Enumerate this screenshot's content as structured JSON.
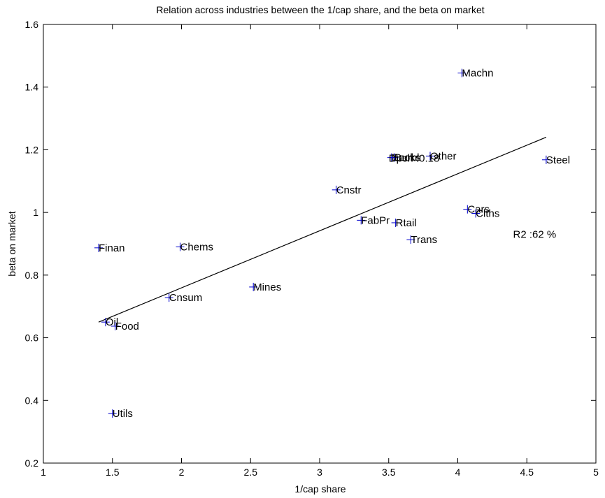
{
  "chart_data": {
    "type": "scatter",
    "title": "Relation across industries between the  1/cap share, and the beta on market",
    "xlabel": "1/cap share",
    "ylabel": "beta on market",
    "xlim": [
      1,
      5
    ],
    "ylim": [
      0.2,
      1.6
    ],
    "xticks": [
      1,
      1.5,
      2,
      2.5,
      3,
      3.5,
      4,
      4.5,
      5
    ],
    "xtick_labels": [
      "1",
      "1.5",
      "2",
      "2.5",
      "3",
      "3.5",
      "4",
      "4.5",
      "5"
    ],
    "yticks": [
      0.2,
      0.4,
      0.6,
      0.8,
      1.0,
      1.2,
      1.4,
      1.6
    ],
    "ytick_labels": [
      "0.2",
      "0.4",
      "0.6",
      "0.8",
      "1",
      "1.2",
      "1.4",
      "1.6"
    ],
    "grid": false,
    "marker": "+",
    "marker_color": "#0000cc",
    "points": [
      {
        "label": "Machn",
        "x": 4.03,
        "y": 1.445
      },
      {
        "label": "Steel",
        "x": 4.64,
        "y": 1.168
      },
      {
        "label": "Other",
        "x": 3.8,
        "y": 1.18
      },
      {
        "label": "Books",
        "x": 3.52,
        "y": 1.175
      },
      {
        "label": "Durbl",
        "x": 3.54,
        "y": 1.175
      },
      {
        "label": "Cnstr",
        "x": 3.12,
        "y": 1.072
      },
      {
        "label": "Cars",
        "x": 4.07,
        "y": 1.01
      },
      {
        "label": "Clths",
        "x": 4.13,
        "y": 0.997
      },
      {
        "label": "FabPr",
        "x": 3.3,
        "y": 0.975
      },
      {
        "label": "Rtail",
        "x": 3.55,
        "y": 0.967
      },
      {
        "label": "Trans",
        "x": 3.66,
        "y": 0.913
      },
      {
        "label": "Finan",
        "x": 1.4,
        "y": 0.887
      },
      {
        "label": "Chems",
        "x": 1.99,
        "y": 0.89
      },
      {
        "label": "Mines",
        "x": 2.52,
        "y": 0.762
      },
      {
        "label": "Cnsum",
        "x": 1.91,
        "y": 0.728
      },
      {
        "label": "Oil",
        "x": 1.45,
        "y": 0.65
      },
      {
        "label": "Food",
        "x": 1.52,
        "y": 0.637
      },
      {
        "label": "Utils",
        "x": 1.5,
        "y": 0.358
      }
    ],
    "fit_line": {
      "x": [
        1.4,
        4.64
      ],
      "y": [
        0.65,
        1.24
      ]
    },
    "annotations": [
      {
        "text": "Dpch :0.18",
        "x": 3.5,
        "y": 1.173
      },
      {
        "text": "R2 :62 %",
        "x": 4.4,
        "y": 0.93
      }
    ],
    "legend": "none"
  }
}
